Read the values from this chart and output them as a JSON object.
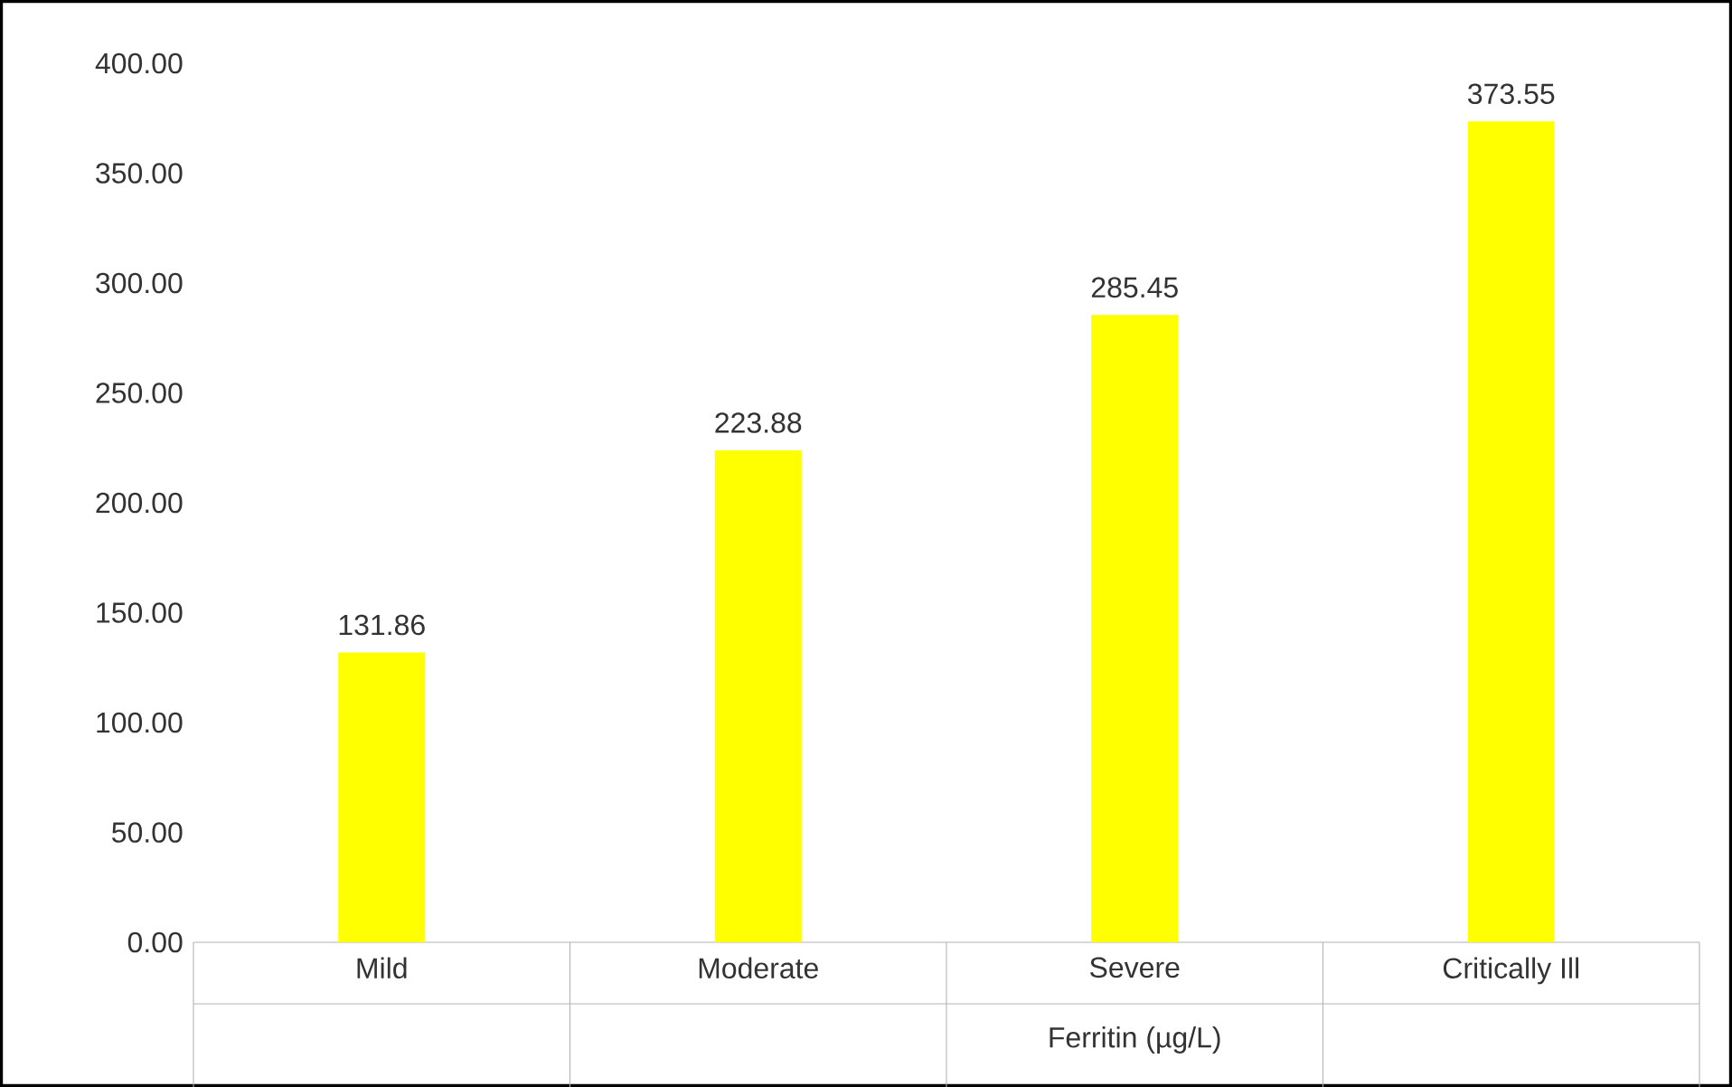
{
  "chart_data": {
    "type": "bar",
    "xlabel": "Ferritin (µg/L)",
    "categories": [
      "Mild",
      "Moderate",
      "Severe",
      "Critically Ill"
    ],
    "values": [
      131.86,
      223.88,
      285.45,
      373.55
    ],
    "color": "#ffff00",
    "ylim": [
      0,
      400
    ],
    "yticks": [
      {
        "value": 0,
        "label": "0.00"
      },
      {
        "value": 50,
        "label": "50.00"
      },
      {
        "value": 100,
        "label": "100.00"
      },
      {
        "value": 150,
        "label": "150.00"
      },
      {
        "value": 200,
        "label": "200.00"
      },
      {
        "value": 250,
        "label": "250.00"
      },
      {
        "value": 300,
        "label": "300.00"
      },
      {
        "value": 350,
        "label": "350.00"
      },
      {
        "value": 400,
        "label": "400.00"
      }
    ],
    "data_labels": true,
    "grid": false
  }
}
